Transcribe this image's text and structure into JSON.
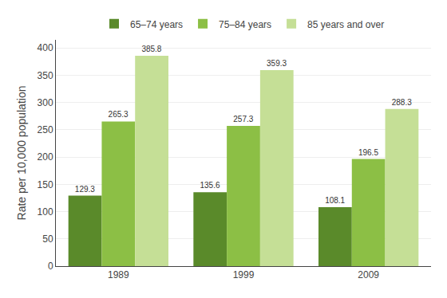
{
  "chart_data": {
    "type": "bar",
    "categories": [
      "1989",
      "1999",
      "2009"
    ],
    "series": [
      {
        "name": "65–74 years",
        "color": "#5a8a2a",
        "values": [
          129.3,
          135.6,
          108.1
        ]
      },
      {
        "name": "75–84 years",
        "color": "#8cbf45",
        "values": [
          265.3,
          257.3,
          196.5
        ]
      },
      {
        "name": "85 years and over",
        "color": "#c5df96",
        "values": [
          385.8,
          359.3,
          288.3
        ]
      }
    ],
    "ylabel": "Rate per 10,000 population",
    "ylim": [
      0,
      415
    ],
    "yticks": [
      0,
      50,
      100,
      150,
      200,
      250,
      300,
      350,
      400
    ],
    "grid": true,
    "legend": "top",
    "data_labels": true
  }
}
